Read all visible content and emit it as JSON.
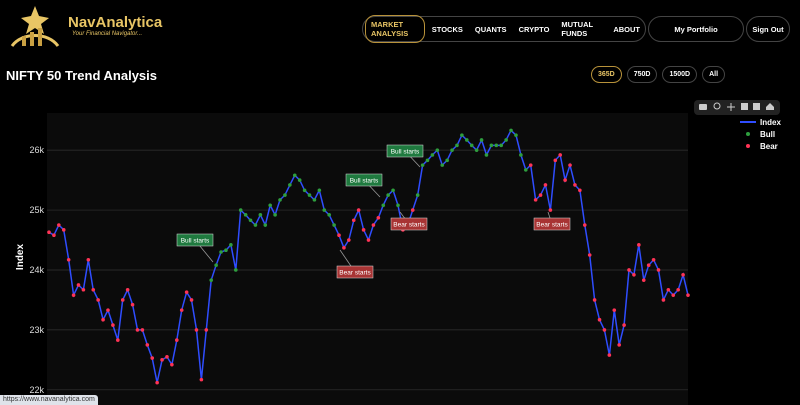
{
  "header": {
    "brand": "NavAnalytica",
    "tagline": "Your Financial Navigator...",
    "nav": [
      "MARKET ANALYSIS",
      "STOCKS",
      "QUANTS",
      "CRYPTO",
      "MUTUAL FUNDS",
      "ABOUT"
    ],
    "portfolio": "My Portfolio",
    "signout": "Sign Out"
  },
  "ranges": [
    "365D",
    "750D",
    "1500D",
    "All"
  ],
  "status_url": "https://www.navanalytica.com",
  "chart_data": {
    "type": "line",
    "title": "NIFTY 50 Trend Analysis",
    "y_label": "Index",
    "ylim": [
      21830,
      26620
    ],
    "yticks": [
      {
        "value": 22000,
        "label": "22k"
      },
      {
        "value": 23000,
        "label": "23k"
      },
      {
        "value": 24000,
        "label": "24k"
      },
      {
        "value": 25000,
        "label": "25k"
      },
      {
        "value": 26000,
        "label": "26k"
      }
    ],
    "grid": true,
    "legend": "top-right",
    "annotations": [
      "Bull starts",
      "Bull starts",
      "Bull starts",
      "Bear starts",
      "Bear starts",
      "Bear starts"
    ],
    "series": [
      {
        "name": "Index",
        "color": "#2f4dff",
        "values": [
          24630,
          24580,
          24750,
          24670,
          24170,
          23580,
          23750,
          23670,
          24170,
          23670,
          23500,
          23170,
          23330,
          23080,
          22830,
          23500,
          23670,
          23420,
          23000,
          23000,
          22750,
          22530,
          22120,
          22500,
          22550,
          22420,
          22830,
          23330,
          23630,
          23500,
          23000,
          22170,
          23000,
          23830,
          24080,
          24300,
          24330,
          24420,
          24000,
          25000,
          24920,
          24830,
          24750,
          24920,
          24750,
          25080,
          24920,
          25170,
          25250,
          25420,
          25580,
          25500,
          25330,
          25250,
          25170,
          25330,
          25000,
          24920,
          24750,
          24580,
          24370,
          24500,
          24830,
          25000,
          24670,
          24500,
          24750,
          24870,
          25080,
          25250,
          25330,
          25080,
          24670,
          24750,
          25000,
          25250,
          25750,
          25830,
          25920,
          26000,
          25750,
          25830,
          26000,
          26080,
          26250,
          26170,
          26080,
          26000,
          26170,
          25920,
          26080,
          26080,
          26080,
          26170,
          26330,
          26250,
          25920,
          25670,
          25750,
          25170,
          25250,
          25420,
          25000,
          25830,
          25920,
          25500,
          25750,
          25420,
          25330,
          24750,
          24250,
          23500,
          23170,
          23000,
          22580,
          23330,
          22750,
          23080,
          24000,
          23920,
          24420,
          23830,
          24080,
          24170,
          24000,
          23500,
          23670,
          23580,
          23670,
          23920,
          23580
        ]
      },
      {
        "name": "Bull",
        "color": "#2e9e3e",
        "values": [
          null,
          null,
          null,
          null,
          null,
          null,
          null,
          null,
          null,
          null,
          null,
          null,
          null,
          null,
          null,
          null,
          null,
          null,
          null,
          null,
          null,
          null,
          null,
          null,
          null,
          null,
          null,
          null,
          null,
          null,
          null,
          null,
          null,
          23830,
          24080,
          24300,
          24330,
          24420,
          24000,
          25000,
          24920,
          24830,
          24750,
          24920,
          24750,
          25080,
          24920,
          25170,
          25250,
          25420,
          25580,
          25500,
          25330,
          25250,
          25170,
          25330,
          25000,
          24920,
          24750,
          null,
          null,
          null,
          null,
          null,
          null,
          null,
          null,
          null,
          25080,
          25250,
          25330,
          25080,
          null,
          null,
          null,
          25250,
          25750,
          25830,
          25920,
          26000,
          25750,
          25830,
          26000,
          26080,
          26250,
          26170,
          26080,
          26000,
          26170,
          25920,
          26080,
          26080,
          26080,
          26170,
          26330,
          26250,
          25920,
          25670,
          null,
          null,
          null,
          null,
          null,
          null,
          null,
          null,
          null,
          null,
          null,
          null,
          null,
          null,
          null,
          null,
          null,
          null,
          null,
          null,
          null,
          null,
          null,
          null,
          null,
          null,
          null,
          null,
          null,
          null,
          null,
          null,
          null
        ]
      },
      {
        "name": "Bear",
        "color": "#ff3355",
        "values": [
          24630,
          24580,
          24750,
          24670,
          24170,
          23580,
          23750,
          23670,
          24170,
          23670,
          23500,
          23170,
          23330,
          23080,
          22830,
          23500,
          23670,
          23420,
          23000,
          23000,
          22750,
          22530,
          22120,
          22500,
          22550,
          22420,
          22830,
          23330,
          23630,
          23500,
          23000,
          22170,
          23000,
          null,
          null,
          null,
          null,
          null,
          null,
          null,
          null,
          null,
          null,
          null,
          null,
          null,
          null,
          null,
          null,
          null,
          null,
          null,
          null,
          null,
          null,
          null,
          null,
          null,
          null,
          24580,
          24370,
          24500,
          24830,
          25000,
          24670,
          24500,
          24750,
          24870,
          null,
          null,
          null,
          null,
          24670,
          24750,
          25000,
          null,
          null,
          null,
          null,
          null,
          null,
          null,
          null,
          null,
          null,
          null,
          null,
          null,
          null,
          null,
          null,
          null,
          null,
          null,
          null,
          null,
          null,
          null,
          25750,
          25170,
          25250,
          25420,
          25000,
          25830,
          25920,
          25500,
          25750,
          25420,
          25330,
          24750,
          24250,
          23500,
          23170,
          23000,
          22580,
          23330,
          22750,
          23080,
          24000,
          23920,
          24420,
          23830,
          24080,
          24170,
          24000,
          23500,
          23670,
          23580,
          23670,
          23920,
          23580
        ]
      }
    ]
  }
}
